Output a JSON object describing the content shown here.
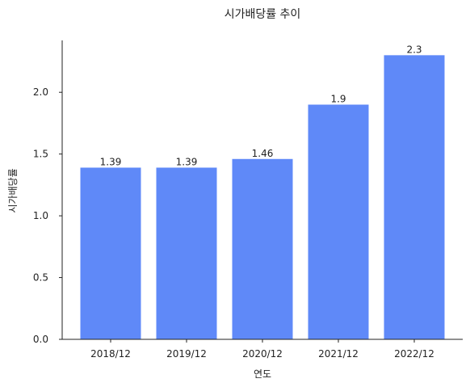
{
  "chart_data": {
    "type": "bar",
    "title": "시가배당률 추이",
    "xlabel": "연도",
    "ylabel": "시가배당률",
    "categories": [
      "2018/12",
      "2019/12",
      "2020/12",
      "2021/12",
      "2022/12"
    ],
    "values": [
      1.39,
      1.39,
      1.46,
      1.9,
      2.3
    ],
    "data_labels": [
      "1.39",
      "1.39",
      "1.46",
      "1.9",
      "2.3"
    ],
    "ylim": [
      0,
      2.42
    ],
    "yticks": [
      0.0,
      0.5,
      1.0,
      1.5,
      2.0
    ],
    "ytick_labels": [
      "0.0",
      "0.5",
      "1.0",
      "1.5",
      "2.0"
    ],
    "grid": false,
    "legend": "none",
    "bar_color": "#5F89F8"
  }
}
